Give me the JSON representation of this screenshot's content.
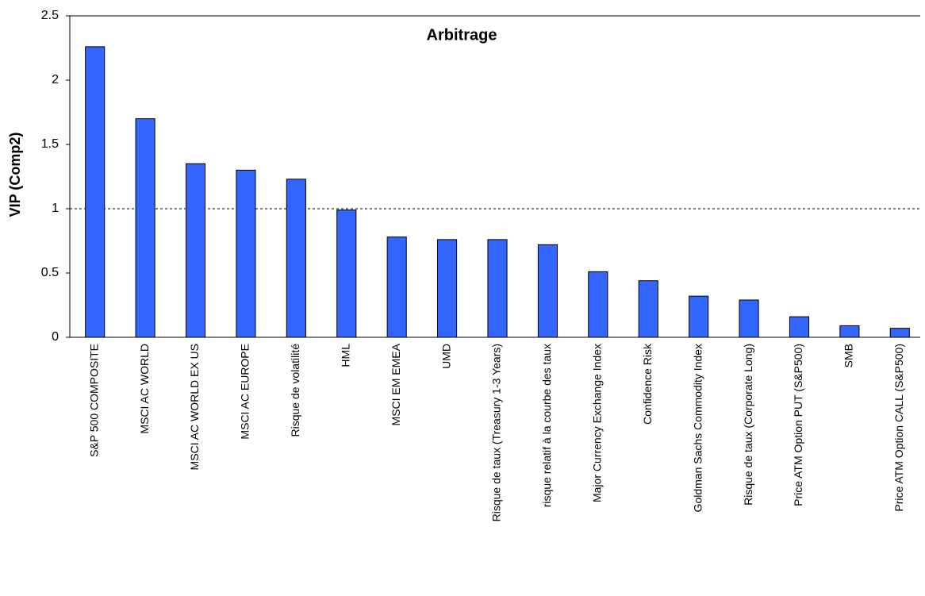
{
  "chart_data": {
    "type": "bar",
    "title": "Arbitrage",
    "y_label": "VIP (Comp2)",
    "categories": [
      "S&P 500 COMPOSITE",
      "MSCI AC WORLD",
      "MSCI AC WORLD EX US",
      "MSCI AC EUROPE",
      "Risque de volatilité",
      "HML",
      "MSCI EM EMEA",
      "UMD",
      "Risque de taux (Treasury 1-3 Years)",
      "risque relatif à la courbe des taux",
      "Major Currency Exchange Index",
      "Confidence Risk",
      "Goldman Sachs Commodity Index",
      "Risque de taux (Corporate Long)",
      "Price ATM Option PUT (S&P500)",
      "SMB",
      "Price ATM Option CALL (S&P500)"
    ],
    "values": [
      2.26,
      1.7,
      1.35,
      1.3,
      1.23,
      0.99,
      0.78,
      0.76,
      0.76,
      0.72,
      0.51,
      0.44,
      0.32,
      0.29,
      0.16,
      0.09,
      0.07
    ],
    "color": "#3366ff",
    "ylim": [
      0,
      2.5
    ],
    "yticks": [
      0,
      0.5,
      1,
      1.5,
      2,
      2.5
    ],
    "reference_line": 1,
    "grid": false
  }
}
